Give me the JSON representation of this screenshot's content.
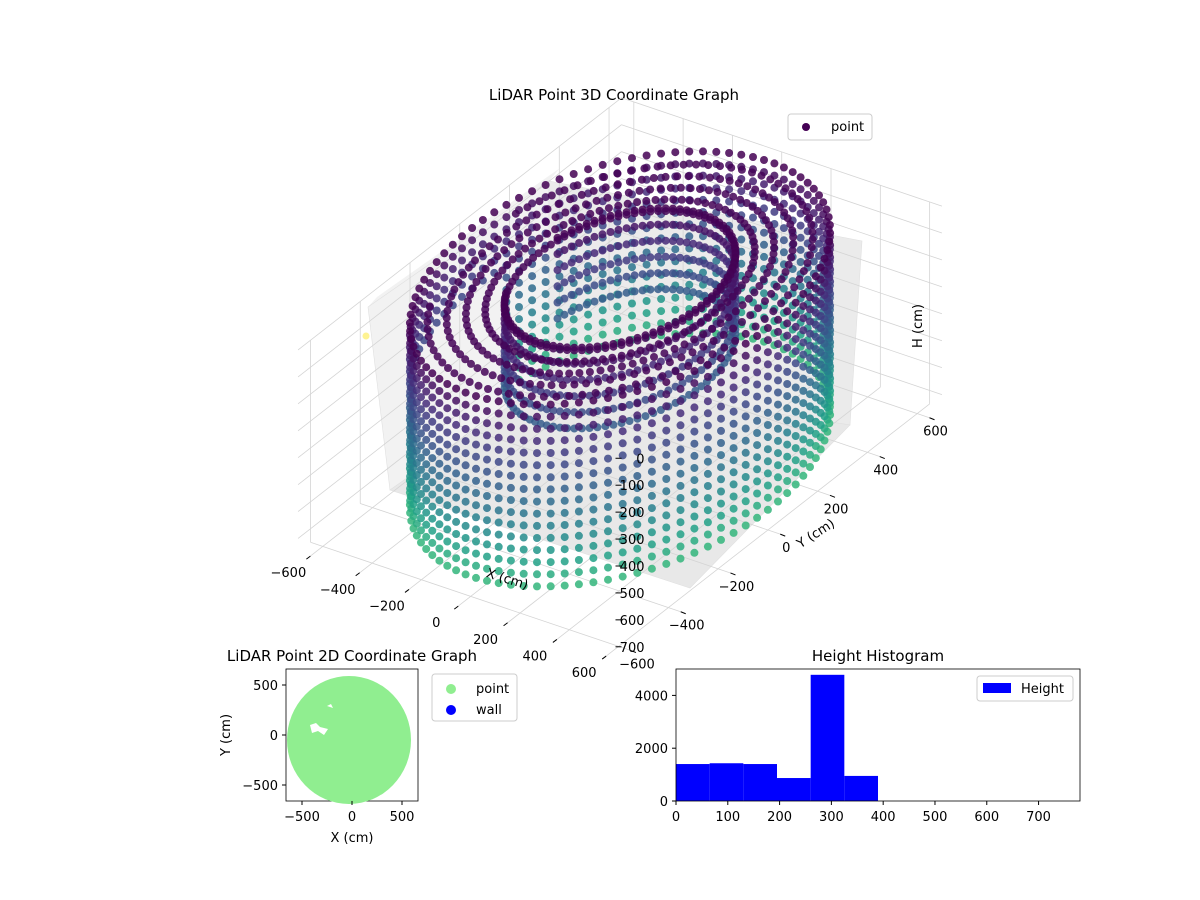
{
  "chart_data": [
    {
      "type": "scatter",
      "projection": "3d",
      "title": "LiDAR Point 3D Coordinate Graph",
      "xlabel": "X (cm)",
      "ylabel": "Y (cm)",
      "zlabel": "H (cm)",
      "xticks": [
        "−600",
        "−400",
        "−200",
        "0",
        "200",
        "400",
        "600"
      ],
      "yticks": [
        "−600",
        "−400",
        "−200",
        "0",
        "200",
        "400",
        "600"
      ],
      "zticks": [
        "0",
        "100",
        "200",
        "300",
        "400",
        "500",
        "600",
        "700"
      ],
      "xlim": [
        -650,
        650
      ],
      "ylim": [
        -650,
        650
      ],
      "zlim": [
        0,
        750
      ],
      "z_inverted": true,
      "colormap": "viridis",
      "marker_color": "#440154",
      "legend": {
        "entries": [
          "point"
        ],
        "placement": "top-right"
      },
      "grid": true,
      "shape": {
        "description_values": {
          "ring_inner_radius": 330,
          "ring_outer_radius": 600,
          "ring_height_top": 0,
          "ring_height_bottom": 680
        }
      }
    },
    {
      "type": "scatter",
      "title": "LiDAR Point 2D Coordinate Graph",
      "xlabel": "X (cm)",
      "ylabel": "Y (cm)",
      "xticks": [
        "−500",
        "0",
        "500"
      ],
      "yticks": [
        "500",
        "0",
        "−500"
      ],
      "xlim": [
        -660,
        660
      ],
      "ylim": [
        -660,
        660
      ],
      "series": [
        {
          "name": "point",
          "color": "#90ee90",
          "disk_radius": 600,
          "center": [
            -30,
            -30
          ]
        },
        {
          "name": "wall",
          "color": "#0000ff",
          "points": []
        }
      ],
      "legend": {
        "placement": "outside-right"
      }
    },
    {
      "type": "bar",
      "title": "Height Histogram",
      "xlabel": "",
      "ylabel": "",
      "bins": [
        {
          "x0": 0,
          "x1": 65,
          "count": 1400
        },
        {
          "x0": 65,
          "x1": 130,
          "count": 1430
        },
        {
          "x0": 130,
          "x1": 195,
          "count": 1400
        },
        {
          "x0": 195,
          "x1": 260,
          "count": 870
        },
        {
          "x0": 260,
          "x1": 325,
          "count": 4780
        },
        {
          "x0": 325,
          "x1": 390,
          "count": 950
        }
      ],
      "xticks": [
        "0",
        "100",
        "200",
        "300",
        "400",
        "500",
        "600",
        "700"
      ],
      "yticks": [
        "0",
        "2000",
        "4000"
      ],
      "xlim": [
        0,
        780
      ],
      "ylim": [
        0,
        5000
      ],
      "color": "#0000ff",
      "legend": {
        "entries": [
          "Height"
        ],
        "placement": "top-right"
      }
    }
  ]
}
